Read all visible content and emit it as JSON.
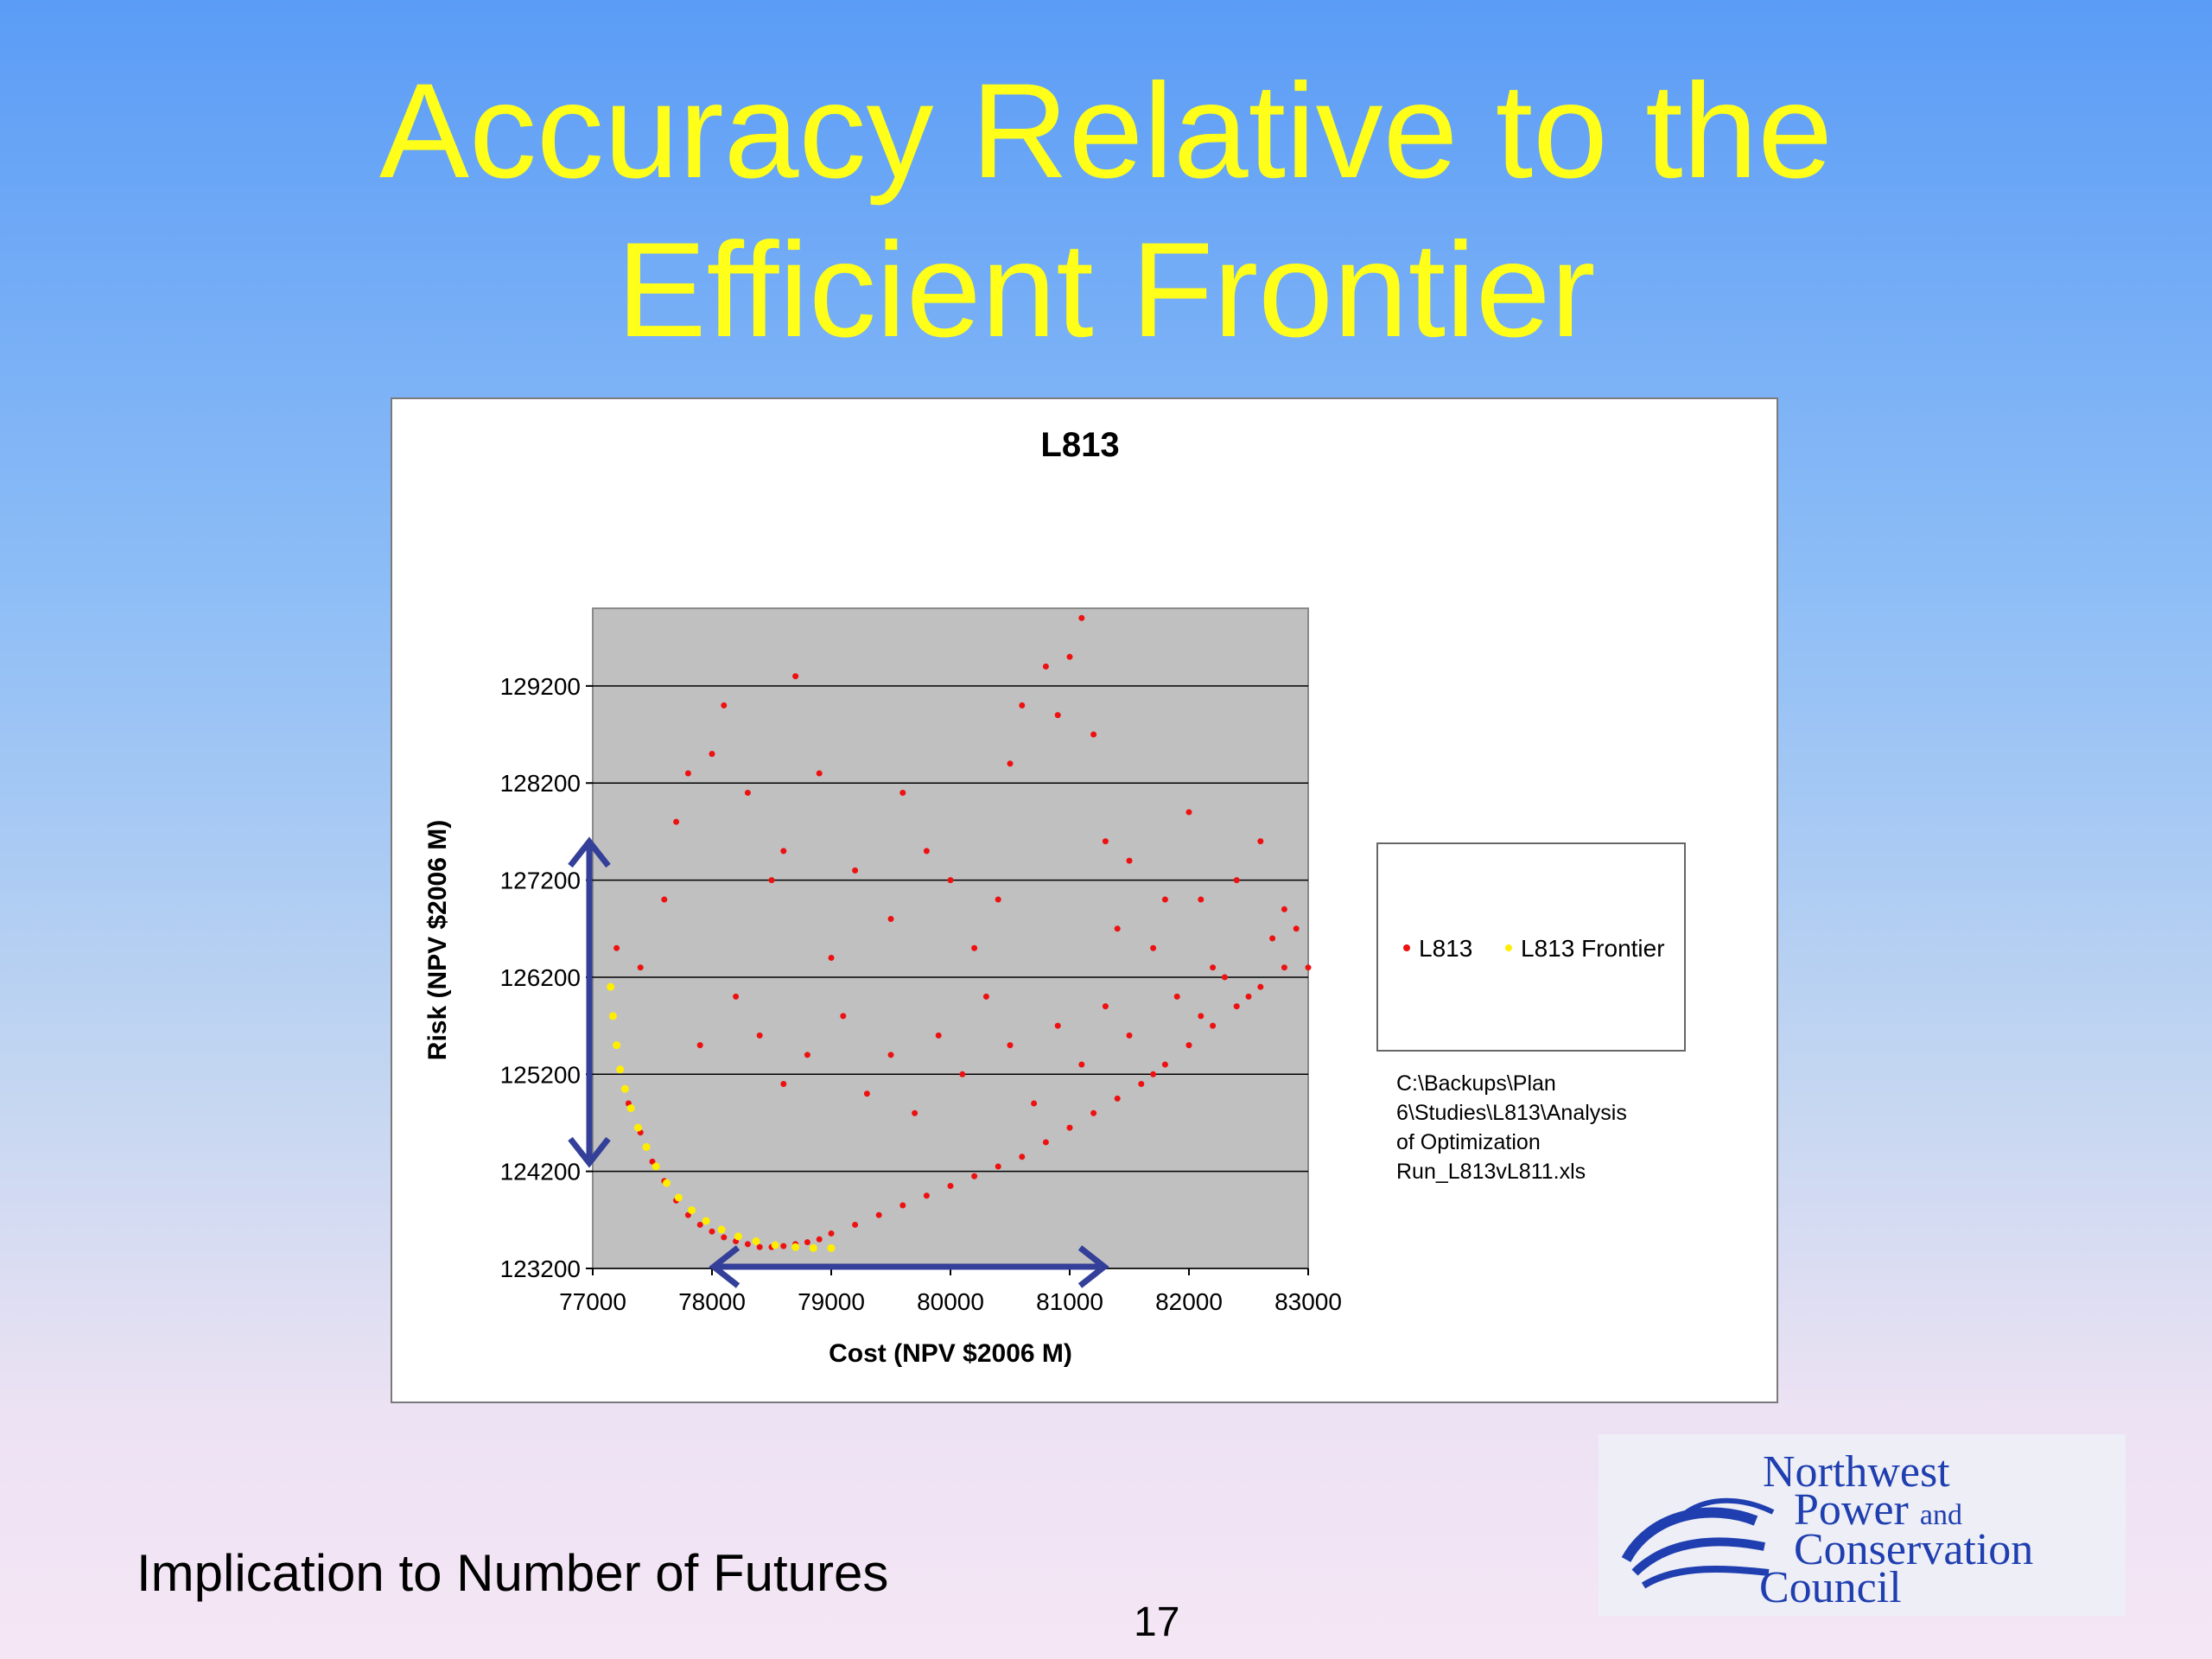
{
  "slide": {
    "title_line1": "Accuracy Relative to the",
    "title_line2": "Efficient Frontier",
    "footer": "Implication to Number of Futures",
    "page_number": "17"
  },
  "logo": {
    "line1": "Northwest",
    "line2_a": "Power",
    "line2_b": "and",
    "line3": "Conservation",
    "line4": "Council",
    "color": "#1f3fb0"
  },
  "colors": {
    "title": "#ffff1a",
    "plot_background": "#c0c0c0",
    "l813_points": "#ee1111",
    "frontier_points": "#ffee00",
    "arrows": "#333f99"
  },
  "chart_data": {
    "type": "scatter",
    "title": "L813",
    "xlabel": "Cost (NPV $2006 M)",
    "ylabel": "Risk (NPV $2006 M)",
    "xlim": [
      77000,
      83000
    ],
    "ylim": [
      123200,
      130000
    ],
    "x_ticks": [
      77000,
      78000,
      79000,
      80000,
      81000,
      82000,
      83000
    ],
    "y_ticks": [
      123200,
      124200,
      125200,
      126200,
      127200,
      128200,
      129200
    ],
    "x_tick_labels": [
      "77000",
      "78000",
      "79000",
      "80000",
      "81000",
      "82000",
      "83000"
    ],
    "y_tick_labels": [
      "123200",
      "124200",
      "125200",
      "126200",
      "127200",
      "128200",
      "129200"
    ],
    "grid": "horizontal",
    "legend_position": "right",
    "annotation": "C:\\Backups\\Plan 6\\Studies\\L813\\Analysis of Optimization Run_L813vL811.xls",
    "series": [
      {
        "name": "L813",
        "color": "#ee1111",
        "points": [
          [
            77300,
            124900
          ],
          [
            77400,
            124600
          ],
          [
            77500,
            124300
          ],
          [
            77600,
            124100
          ],
          [
            77700,
            123900
          ],
          [
            77800,
            123750
          ],
          [
            77900,
            123650
          ],
          [
            78000,
            123580
          ],
          [
            78100,
            123520
          ],
          [
            78200,
            123480
          ],
          [
            78300,
            123450
          ],
          [
            78400,
            123420
          ],
          [
            78500,
            123420
          ],
          [
            78600,
            123430
          ],
          [
            78700,
            123450
          ],
          [
            78800,
            123470
          ],
          [
            78900,
            123500
          ],
          [
            79000,
            123560
          ],
          [
            79200,
            123650
          ],
          [
            79400,
            123750
          ],
          [
            79600,
            123850
          ],
          [
            79800,
            123950
          ],
          [
            80000,
            124050
          ],
          [
            80200,
            124150
          ],
          [
            80400,
            124250
          ],
          [
            80600,
            124350
          ],
          [
            80800,
            124500
          ],
          [
            81000,
            124650
          ],
          [
            81200,
            124800
          ],
          [
            81400,
            124950
          ],
          [
            81600,
            125100
          ],
          [
            81800,
            125300
          ],
          [
            82000,
            125500
          ],
          [
            82200,
            125700
          ],
          [
            82400,
            125900
          ],
          [
            82600,
            126100
          ],
          [
            82800,
            126300
          ],
          [
            83000,
            126300
          ],
          [
            77200,
            126500
          ],
          [
            77400,
            126300
          ],
          [
            77600,
            127000
          ],
          [
            77700,
            127800
          ],
          [
            77800,
            128300
          ],
          [
            78000,
            128500
          ],
          [
            78100,
            129000
          ],
          [
            78300,
            128100
          ],
          [
            78500,
            127200
          ],
          [
            78600,
            127500
          ],
          [
            78700,
            129300
          ],
          [
            78900,
            128300
          ],
          [
            79000,
            126400
          ],
          [
            79200,
            127300
          ],
          [
            79500,
            126800
          ],
          [
            79600,
            128100
          ],
          [
            79800,
            127500
          ],
          [
            80000,
            127200
          ],
          [
            80200,
            126500
          ],
          [
            80400,
            127000
          ],
          [
            80500,
            128400
          ],
          [
            80600,
            129000
          ],
          [
            80800,
            129400
          ],
          [
            80900,
            128900
          ],
          [
            81000,
            129500
          ],
          [
            81100,
            129900
          ],
          [
            81200,
            128700
          ],
          [
            81300,
            127600
          ],
          [
            81400,
            126700
          ],
          [
            81500,
            127400
          ],
          [
            81700,
            126500
          ],
          [
            81800,
            127000
          ],
          [
            82000,
            127900
          ],
          [
            82100,
            127000
          ],
          [
            82200,
            126300
          ],
          [
            82400,
            127200
          ],
          [
            82600,
            127600
          ],
          [
            82800,
            126900
          ],
          [
            82900,
            126700
          ],
          [
            77900,
            125500
          ],
          [
            78200,
            126000
          ],
          [
            78400,
            125600
          ],
          [
            78600,
            125100
          ],
          [
            78800,
            125400
          ],
          [
            79100,
            125800
          ],
          [
            79300,
            125000
          ],
          [
            79500,
            125400
          ],
          [
            79700,
            124800
          ],
          [
            79900,
            125600
          ],
          [
            80100,
            125200
          ],
          [
            80300,
            126000
          ],
          [
            80500,
            125500
          ],
          [
            80700,
            124900
          ],
          [
            80900,
            125700
          ],
          [
            81100,
            125300
          ],
          [
            81300,
            125900
          ],
          [
            81500,
            125600
          ],
          [
            81700,
            125200
          ],
          [
            81900,
            126000
          ],
          [
            82100,
            125800
          ],
          [
            82300,
            126200
          ],
          [
            82500,
            126000
          ],
          [
            82700,
            126600
          ]
        ]
      },
      {
        "name": "L813 Frontier",
        "color": "#ffee00",
        "points": [
          [
            77150,
            126100
          ],
          [
            77170,
            125800
          ],
          [
            77200,
            125500
          ],
          [
            77230,
            125250
          ],
          [
            77270,
            125050
          ],
          [
            77320,
            124850
          ],
          [
            77380,
            124650
          ],
          [
            77450,
            124450
          ],
          [
            77530,
            124250
          ],
          [
            77620,
            124080
          ],
          [
            77720,
            123930
          ],
          [
            77830,
            123800
          ],
          [
            77950,
            123690
          ],
          [
            78080,
            123600
          ],
          [
            78220,
            123530
          ],
          [
            78370,
            123480
          ],
          [
            78530,
            123440
          ],
          [
            78700,
            123420
          ],
          [
            78850,
            123410
          ],
          [
            79000,
            123410
          ]
        ]
      }
    ]
  }
}
